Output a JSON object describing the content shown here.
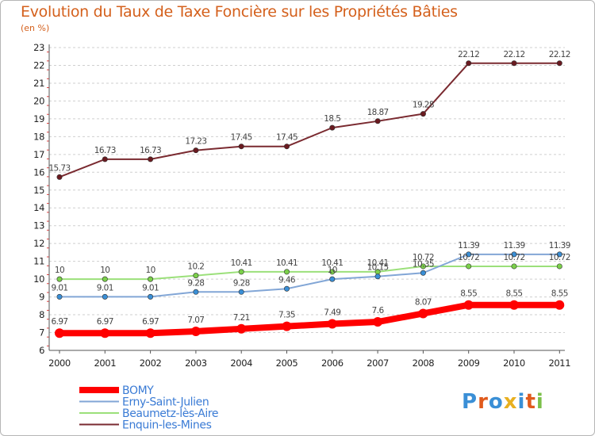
{
  "chart_data": {
    "type": "line",
    "title": "Evolution du Taux de Taxe Foncière sur les Propriétés Bâties",
    "subtitle": "",
    "xlabel": "",
    "ylabel": "(en %)",
    "ylim": [
      6,
      23
    ],
    "yticks": [
      "6",
      "7",
      "8",
      "9",
      "10",
      "11",
      "12",
      "13",
      "14",
      "15",
      "16",
      "17",
      "18",
      "19",
      "20",
      "21",
      "22",
      "23"
    ],
    "categories": [
      "2000",
      "2001",
      "2002",
      "2003",
      "2004",
      "2005",
      "2006",
      "2007",
      "2008",
      "2009",
      "2010",
      "2011"
    ],
    "grid": "horizontal-dashed",
    "legend": "bottom-left",
    "series": [
      {
        "name": "BOMY",
        "color": "#ff0000",
        "marker_color": "#ff0000",
        "width": 8,
        "values": [
          6.97,
          6.97,
          6.97,
          7.07,
          7.21,
          7.35,
          7.49,
          7.6,
          8.07,
          8.55,
          8.55,
          8.55
        ],
        "labels": [
          "6.97",
          "6.97",
          "6.97",
          "7.07",
          "7.21",
          "7.35",
          "7.49",
          "7.6",
          "8.07",
          "8.55",
          "8.55",
          "8.55"
        ]
      },
      {
        "name": "Erny-Saint-Julien",
        "color": "#82a6d6",
        "marker_color": "#3a8fd6",
        "width": 2,
        "values": [
          9.01,
          9.01,
          9.01,
          9.28,
          9.28,
          9.46,
          10,
          10.15,
          10.35,
          11.39,
          11.39,
          11.39
        ],
        "labels": [
          "9.01",
          "9.01",
          "9.01",
          "9.28",
          "9.28",
          "9.46",
          "10",
          "10.15",
          "10.35",
          "11.39",
          "11.39",
          "11.39"
        ]
      },
      {
        "name": "Beaumetz-lès-Aire",
        "color": "#9be07a",
        "marker_color": "#7bd04a",
        "width": 2,
        "values": [
          10,
          10,
          10,
          10.2,
          10.41,
          10.41,
          10.41,
          10.41,
          10.72,
          10.72,
          10.72,
          10.72
        ],
        "labels": [
          "10",
          "10",
          "10",
          "10.2",
          "10.41",
          "10.41",
          "10.41",
          "10.41",
          "10.72",
          "10.72",
          "10.72",
          "10.72"
        ]
      },
      {
        "name": "Enquin-les-Mines",
        "color": "#7a2a30",
        "marker_color": "#6a1a20",
        "width": 2,
        "values": [
          15.73,
          16.73,
          16.73,
          17.23,
          17.45,
          17.45,
          18.5,
          18.87,
          19.28,
          22.12,
          22.12,
          22.12
        ],
        "labels": [
          "15.73",
          "16.73",
          "16.73",
          "17.23",
          "17.45",
          "17.45",
          "18.5",
          "18.87",
          "19.28",
          "22.12",
          "22.12",
          "22.12"
        ]
      }
    ]
  },
  "logo": {
    "text": "Proxiti",
    "letter_colors": [
      "#3a8fd6",
      "#e05a1c",
      "#3a8fd6",
      "#e8b020",
      "#3a8fd6",
      "#e05a1c",
      "#7bc04a"
    ]
  }
}
